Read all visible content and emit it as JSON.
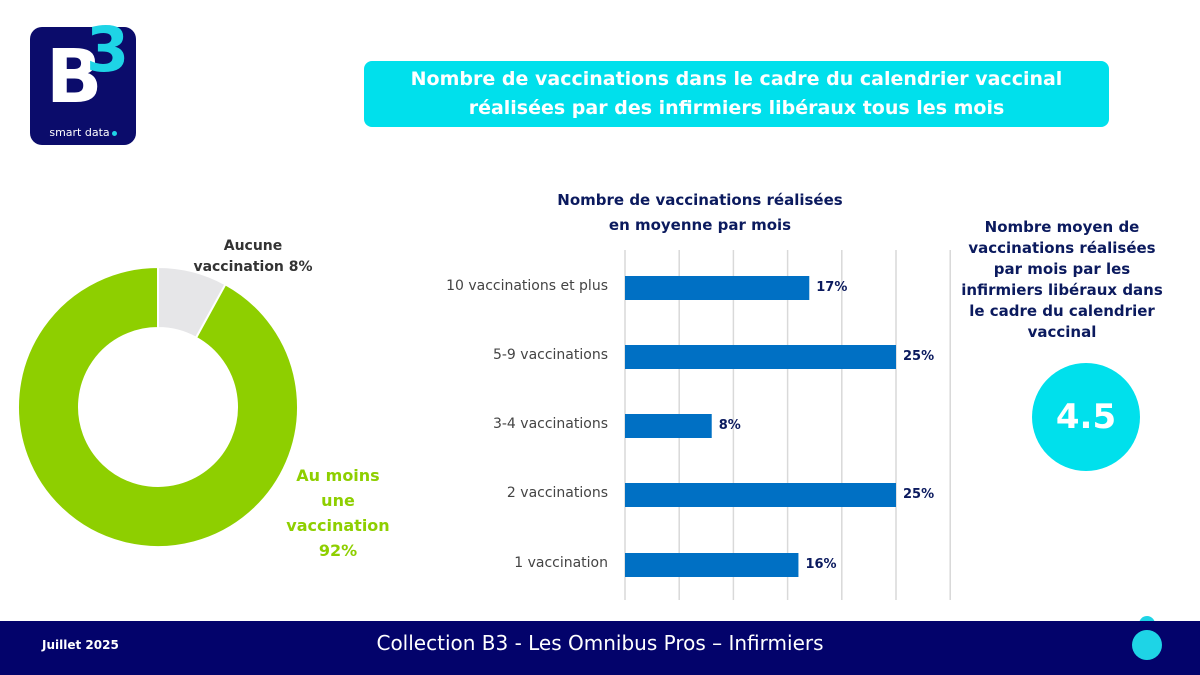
{
  "logo": {
    "letter": "B",
    "superscript": "3",
    "tagline": "smart data"
  },
  "header": {
    "title_line1": "Nombre de vaccinations dans le cadre du calendrier vaccinal",
    "title_line2": "réalisées par des infirmiers libéraux tous les mois"
  },
  "donut": {
    "label_none_line1": "Aucune",
    "label_none_line2": "vaccination 8%",
    "label_some_line1": "Au moins",
    "label_some_line2": "une",
    "label_some_line3": "vaccination",
    "label_some_line4": "92%"
  },
  "side": {
    "title_lines": [
      "Nombre moyen de",
      "vaccinations réalisées",
      "par mois par les",
      "infirmiers libéraux dans",
      "le cadre du calendrier",
      "vaccinal"
    ],
    "value": "4.5"
  },
  "footer": {
    "date": "Juillet 2025",
    "title": "Collection  B3 - Les Omnibus Pros – Infirmiers"
  },
  "colors": {
    "navy": "#03036b",
    "cyan": "#00e0ec",
    "green": "#8ecf00",
    "grey": "#e6e6e8",
    "bar_blue": "#0070c4",
    "label_navy": "#0b1a5e"
  },
  "chart_data": [
    {
      "type": "pie",
      "variant": "donut",
      "categories": [
        "Aucune vaccination",
        "Au moins une vaccination"
      ],
      "values": [
        8,
        92
      ],
      "unit": "%"
    },
    {
      "type": "bar",
      "orientation": "horizontal",
      "title_line1": "Nombre de vaccinations réalisées",
      "title_line2": "en moyenne par mois",
      "categories": [
        "10 vaccinations et plus",
        "5-9 vaccinations",
        "3-4 vaccinations",
        "2 vaccinations",
        "1 vaccination"
      ],
      "values": [
        17,
        25,
        8,
        25,
        16
      ],
      "data_labels": [
        "17%",
        "25%",
        "8%",
        "25%",
        "16%"
      ],
      "xlim": [
        0,
        30
      ],
      "grid": true,
      "grid_step": 5,
      "unit": "%"
    }
  ]
}
